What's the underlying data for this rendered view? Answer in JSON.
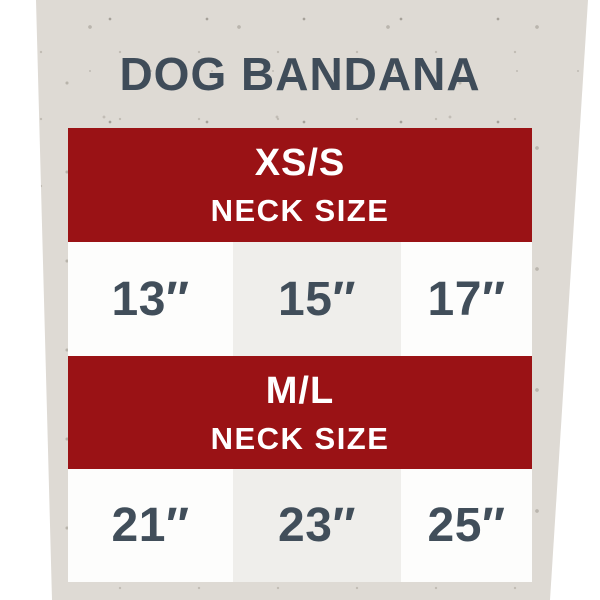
{
  "title": "DOG BANDANA",
  "colors": {
    "background_paper": "#dedad4",
    "banner_red": "#9a1215",
    "text_slate": "#3f4c59",
    "banner_text": "#ffffff",
    "cell_white": "#fdfdfc",
    "cell_gray": "#efeeeb"
  },
  "size_chart": {
    "sections": [
      {
        "size_label": "XS/S",
        "sub_label": "NECK SIZE",
        "measurements": [
          "13″",
          "15″",
          "17″"
        ]
      },
      {
        "size_label": "M/L",
        "sub_label": "NECK SIZE",
        "measurements": [
          "21″",
          "23″",
          "25″"
        ]
      }
    ]
  },
  "chart_data": {
    "type": "table",
    "title": "DOG BANDANA",
    "sections": [
      {
        "header": "XS/S",
        "subheader": "NECK SIZE",
        "neck_sizes_inches": [
          13,
          15,
          17
        ]
      },
      {
        "header": "M/L",
        "subheader": "NECK SIZE",
        "neck_sizes_inches": [
          21,
          23,
          25
        ]
      }
    ]
  }
}
